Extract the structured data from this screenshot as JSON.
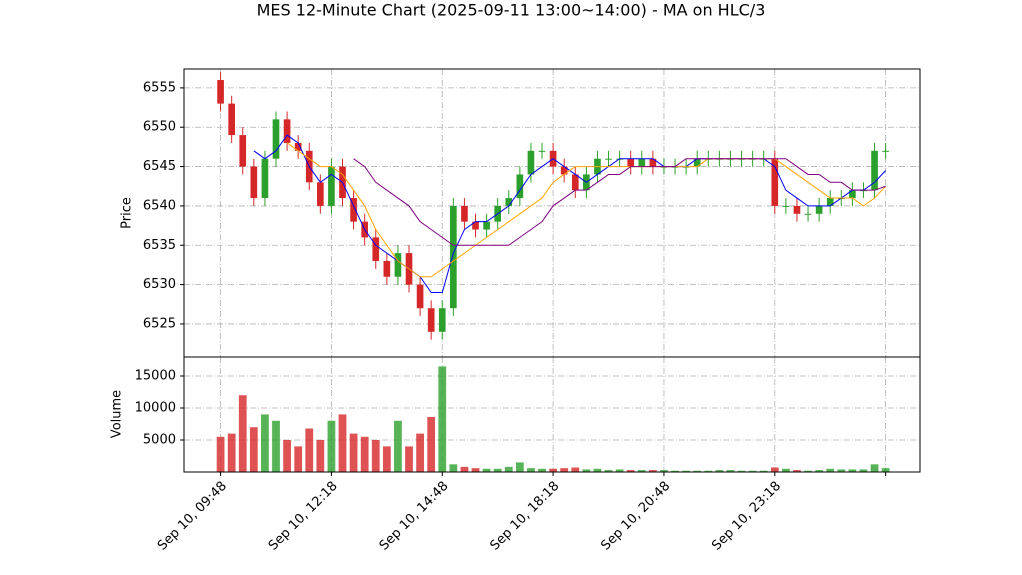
{
  "chart_data": [
    {
      "type": "candlestick",
      "title": "MES 12-Minute Chart (2025-09-11 13:00~14:00) - MA on HLC/3",
      "ylabel": "Price",
      "categories": [
        "Sep 10, 09:48",
        null,
        null,
        null,
        null,
        null,
        null,
        null,
        null,
        null,
        "Sep 10, 12:18",
        null,
        null,
        null,
        null,
        null,
        null,
        null,
        null,
        null,
        "Sep 10, 14:48",
        null,
        null,
        null,
        null,
        null,
        null,
        null,
        null,
        null,
        "Sep 10, 18:18",
        null,
        null,
        null,
        null,
        null,
        null,
        null,
        null,
        null,
        "Sep 10, 20:48",
        null,
        null,
        null,
        null,
        null,
        null,
        null,
        null,
        null,
        "Sep 10, 23:18",
        null,
        null,
        null,
        null,
        null,
        null,
        null,
        null,
        null,
        null
      ],
      "open": [
        6556,
        6553,
        6549,
        6545,
        6541,
        6546,
        6551,
        6548,
        6547,
        6543,
        6540,
        6545,
        6541,
        6538,
        6536,
        6533,
        6531,
        6534,
        6530,
        6527,
        6524,
        6527,
        6540,
        6538,
        6537,
        6538,
        6540,
        6541,
        6544,
        6547,
        6547,
        6545,
        6544,
        6542,
        6544,
        6546,
        6546,
        6546,
        6545,
        6546,
        6545,
        6545,
        6545,
        6545,
        6546,
        6546,
        6546,
        6546,
        6546,
        6546,
        6546,
        6540,
        6540,
        6539,
        6539,
        6540,
        6541,
        6541,
        6542,
        6542,
        6547
      ],
      "high": [
        6557,
        6554,
        6550,
        6546,
        6547,
        6552,
        6552,
        6549,
        6548,
        6544,
        6546,
        6546,
        6542,
        6539,
        6537,
        6534,
        6535,
        6535,
        6531,
        6528,
        6528,
        6541,
        6541,
        6539,
        6539,
        6541,
        6542,
        6545,
        6548,
        6548,
        6548,
        6546,
        6545,
        6545,
        6547,
        6547,
        6547,
        6547,
        6547,
        6547,
        6546,
        6546,
        6546,
        6547,
        6547,
        6547,
        6547,
        6547,
        6547,
        6547,
        6547,
        6541,
        6541,
        6540,
        6541,
        6542,
        6542,
        6543,
        6543,
        6548,
        6548
      ],
      "low": [
        6552,
        6548,
        6544,
        6540,
        6540,
        6545,
        6547,
        6546,
        6542,
        6539,
        6539,
        6540,
        6537,
        6535,
        6532,
        6530,
        6530,
        6529,
        6526,
        6523,
        6523,
        6526,
        6537,
        6536,
        6536,
        6537,
        6539,
        6540,
        6543,
        6546,
        6544,
        6543,
        6541,
        6541,
        6543,
        6545,
        6545,
        6544,
        6544,
        6544,
        6544,
        6544,
        6544,
        6544,
        6545,
        6545,
        6545,
        6545,
        6545,
        6545,
        6539,
        6539,
        6538,
        6538,
        6538,
        6539,
        6540,
        6540,
        6541,
        6541,
        6546
      ],
      "close": [
        6553,
        6549,
        6545,
        6541,
        6546,
        6551,
        6548,
        6547,
        6543,
        6540,
        6545,
        6541,
        6538,
        6536,
        6533,
        6531,
        6534,
        6530,
        6527,
        6524,
        6527,
        6540,
        6538,
        6537,
        6538,
        6540,
        6541,
        6544,
        6547,
        6547,
        6545,
        6544,
        6542,
        6544,
        6546,
        6546,
        6546,
        6545,
        6546,
        6545,
        6545,
        6545,
        6545,
        6546,
        6546,
        6546,
        6546,
        6546,
        6546,
        6546,
        6540,
        6540,
        6539,
        6539,
        6540,
        6541,
        6541,
        6542,
        6542,
        6547,
        6547
      ],
      "up_color": "#2ca02c",
      "down_color": "#d62728",
      "series": [
        {
          "color": "#0000ff",
          "values": [
            null,
            null,
            null,
            6547,
            6546,
            6547,
            6549,
            6548,
            6545,
            6543,
            6544,
            6543,
            6540,
            6537,
            6535,
            6534,
            6533,
            6532,
            6531,
            6529,
            6529,
            6534,
            6537,
            6538,
            6538,
            6539,
            6540,
            6542,
            6544,
            6545,
            6546,
            6545,
            6544,
            6543,
            6544,
            6545,
            6546,
            6546,
            6546,
            6546,
            6545,
            6545,
            6545,
            6546,
            6546,
            6546,
            6546,
            6546,
            6546,
            6546,
            6545,
            6542,
            6541,
            6540,
            6540,
            6540,
            6541,
            6542,
            6542,
            6543,
            6544.5
          ]
        },
        {
          "color": "#ffa500",
          "values": [
            null,
            null,
            null,
            null,
            null,
            null,
            6548,
            6547,
            6546,
            6545,
            6545,
            6544,
            6542,
            6540,
            6537,
            6535,
            6533,
            6532,
            6531,
            6531,
            6532,
            6533,
            6534,
            6535,
            6536,
            6537,
            6538,
            6539,
            6540,
            6541,
            6543,
            6544,
            6545,
            6545,
            6545,
            6545,
            6545,
            6545,
            6545,
            6545,
            6545,
            6545,
            6545,
            6545,
            6546,
            6546,
            6546,
            6546,
            6546,
            6546,
            6546,
            6545,
            6544,
            6543,
            6542,
            6541,
            6541,
            6541,
            6540,
            6541,
            6542.5
          ]
        },
        {
          "color": "#800080",
          "values": [
            null,
            null,
            null,
            null,
            null,
            null,
            null,
            null,
            null,
            null,
            null,
            null,
            6546,
            6545,
            6543,
            6542,
            6541,
            6540,
            6538,
            6537,
            6536,
            6535,
            6535,
            6535,
            6535,
            6535,
            6535,
            6536,
            6537,
            6538,
            6540,
            6541,
            6542,
            6542,
            6543,
            6544,
            6544,
            6545,
            6545,
            6545,
            6545,
            6545,
            6546,
            6546,
            6546,
            6546,
            6546,
            6546,
            6546,
            6546,
            6546,
            6546,
            6545,
            6544,
            6544,
            6543,
            6543,
            6542,
            6542,
            6542,
            6542.5
          ]
        }
      ],
      "xlim": [
        -3.3,
        63.1
      ],
      "xticks": [
        0,
        10,
        20,
        30,
        40,
        50,
        60
      ],
      "ylim": [
        6520.8,
        6557.4
      ],
      "yticks": [
        6525,
        6530,
        6535,
        6540,
        6545,
        6550,
        6555
      ],
      "grid": true
    },
    {
      "type": "bar",
      "ylabel": "Volume",
      "values": [
        5500,
        6000,
        12000,
        7000,
        9000,
        8000,
        5000,
        4000,
        6800,
        5000,
        8000,
        9000,
        6000,
        5500,
        5000,
        4000,
        8000,
        4000,
        6000,
        8600,
        16500,
        1200,
        800,
        600,
        500,
        500,
        800,
        1500,
        600,
        500,
        500,
        600,
        700,
        400,
        500,
        300,
        400,
        300,
        300,
        300,
        300,
        200,
        200,
        200,
        200,
        300,
        300,
        200,
        200,
        200,
        700,
        500,
        300,
        200,
        300,
        500,
        400,
        400,
        400,
        1200,
        600
      ],
      "ylim": [
        0,
        17970
      ],
      "yticks": [
        5000,
        10000,
        15000
      ],
      "grid": true
    }
  ]
}
